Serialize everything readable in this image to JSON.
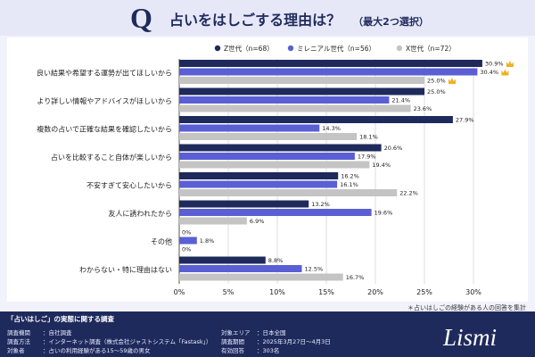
{
  "header": {
    "q_mark": "Q",
    "title": "占いをはしごする理由は？",
    "subtitle": "（最大2つ選択）"
  },
  "chart_data": {
    "type": "bar",
    "orientation": "horizontal",
    "categories": [
      "良い結果や希望する運勢が出てほしいから",
      "より詳しい情報やアドバイスがほしいから",
      "複数の占いで正確な結果を確認したいから",
      "占いを比較すること自体が楽しいから",
      "不安すぎて安心したいから",
      "友人に誘われたから",
      "その他",
      "わからない・特に理由はない"
    ],
    "series": [
      {
        "name": "Z世代（n=68）",
        "color": "#1f2a5c",
        "values": [
          30.9,
          25.0,
          27.9,
          20.6,
          16.2,
          13.2,
          0.0,
          8.8
        ]
      },
      {
        "name": "ミレニアル世代（n=56）",
        "color": "#5a5fd4",
        "values": [
          30.4,
          21.4,
          14.3,
          17.9,
          16.1,
          19.6,
          1.8,
          12.5
        ]
      },
      {
        "name": "X世代（n=72）",
        "color": "#c4c4c4",
        "values": [
          25.0,
          23.6,
          18.1,
          19.4,
          22.2,
          6.9,
          0.0,
          16.7
        ]
      }
    ],
    "value_labels": [
      [
        "30.9%",
        "25.0%",
        "27.9%",
        "20.6%",
        "16.2%",
        "13.2%",
        "0%",
        "8.8%"
      ],
      [
        "30.4%",
        "21.4%",
        "14.3%",
        "17.9%",
        "16.1%",
        "19.6%",
        "1.8%",
        "12.5%"
      ],
      [
        "25.0%",
        "23.6%",
        "18.1%",
        "19.4%",
        "22.2%",
        "6.9%",
        "0%",
        "16.7%"
      ]
    ],
    "crowns": [
      {
        "series": 0,
        "category": 0
      },
      {
        "series": 1,
        "category": 0
      },
      {
        "series": 2,
        "category": 0
      }
    ],
    "crown_icon": "crown-icon",
    "crown_color": "#f2b01e",
    "xlim": [
      0,
      30
    ],
    "xticks": [
      "0%",
      "5%",
      "10%",
      "15%",
      "20%",
      "25%",
      "30%"
    ],
    "grid": true,
    "legend_position": "top-right"
  },
  "footnote": "＊占いはしごの経験がある人の回答を集計",
  "footer": {
    "title": "「占いはしご」の実態に関する調査",
    "left": [
      {
        "label": "調査機関",
        "value": "：自社調査"
      },
      {
        "label": "調査方法",
        "value": "：インターネット調査（株式会社ジャストシステム「Fastask」）"
      },
      {
        "label": "対象者",
        "value": "：占いの利用経験がある15〜59歳の男女"
      }
    ],
    "right": [
      {
        "label": "対象エリア",
        "value": "：日本全国"
      },
      {
        "label": "調査期間",
        "value": "：2025年3月27日〜4月3日"
      },
      {
        "label": "有効回答",
        "value": "：303名"
      }
    ],
    "brand": "Lismi"
  }
}
